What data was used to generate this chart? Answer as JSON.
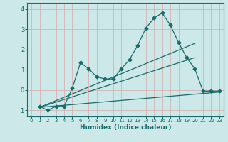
{
  "xlabel": "Humidex (Indice chaleur)",
  "bg_color": "#cce8e8",
  "grid_color": "#b8d8d8",
  "line_color": "#1a6b6b",
  "xlim": [
    -0.5,
    23.5
  ],
  "ylim": [
    -1.3,
    4.3
  ],
  "xticks": [
    0,
    1,
    2,
    3,
    4,
    5,
    6,
    7,
    8,
    9,
    10,
    11,
    12,
    13,
    14,
    15,
    16,
    17,
    18,
    19,
    20,
    21,
    22,
    23
  ],
  "yticks": [
    -1,
    0,
    1,
    2,
    3,
    4
  ],
  "main_x": [
    1,
    2,
    3,
    4,
    5,
    6,
    7,
    8,
    9,
    10,
    11,
    12,
    13,
    14,
    15,
    16,
    17,
    18,
    19,
    20,
    21,
    22,
    23
  ],
  "main_y": [
    -0.8,
    -1.0,
    -0.8,
    -0.8,
    0.1,
    1.35,
    1.05,
    0.65,
    0.55,
    0.55,
    1.05,
    1.5,
    2.2,
    3.05,
    3.55,
    3.8,
    3.2,
    2.35,
    1.6,
    1.05,
    -0.05,
    -0.05,
    -0.05
  ],
  "trend1_x": [
    1,
    23
  ],
  "trend1_y": [
    -0.85,
    -0.1
  ],
  "trend2_x": [
    1,
    20
  ],
  "trend2_y": [
    -0.85,
    1.6
  ],
  "trend3_x": [
    1,
    20
  ],
  "trend3_y": [
    -0.85,
    2.3
  ]
}
